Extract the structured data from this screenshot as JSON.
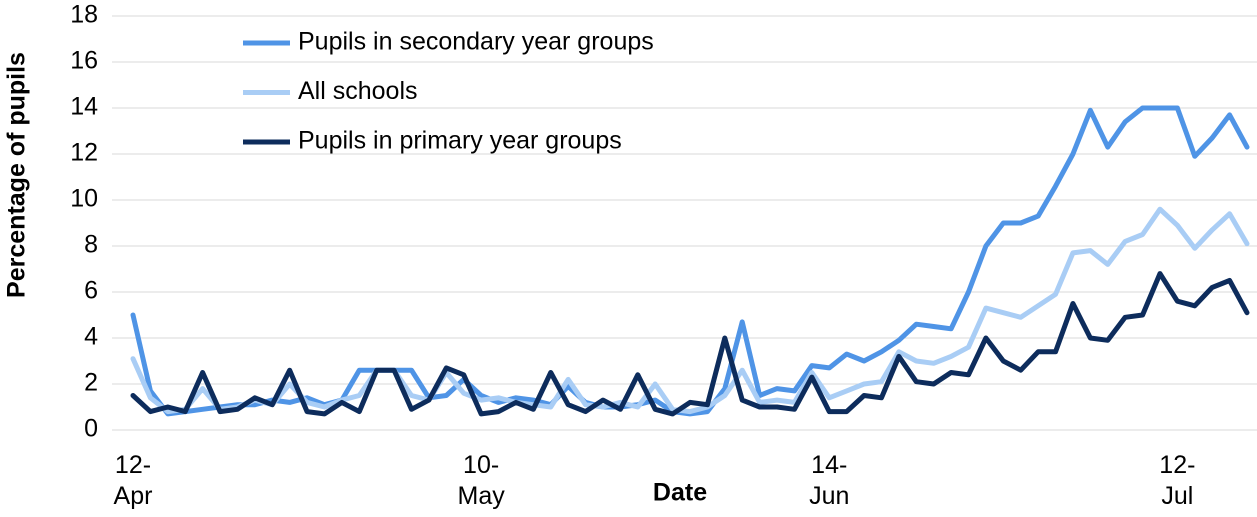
{
  "chart_data": {
    "type": "line",
    "y_label": "Percentage of pupils",
    "x_label": "Date",
    "categories": [
      "12-Apr",
      null,
      null,
      null,
      null,
      null,
      null,
      null,
      null,
      null,
      null,
      null,
      null,
      null,
      null,
      null,
      null,
      null,
      null,
      null,
      "10-May",
      null,
      null,
      null,
      null,
      null,
      null,
      null,
      null,
      null,
      null,
      null,
      null,
      null,
      null,
      null,
      null,
      null,
      null,
      null,
      "14-Jun",
      null,
      null,
      null,
      null,
      null,
      null,
      null,
      null,
      null,
      null,
      null,
      null,
      null,
      null,
      null,
      null,
      null,
      null,
      null,
      "12-Jul",
      null,
      null,
      null,
      null
    ],
    "series": [
      {
        "name": "Pupils in secondary year groups",
        "color": "#4f94e6",
        "values": [
          5.0,
          1.7,
          0.7,
          0.8,
          0.9,
          1.0,
          1.1,
          1.1,
          1.3,
          1.2,
          1.4,
          1.1,
          1.3,
          2.6,
          2.6,
          2.6,
          2.6,
          1.4,
          1.5,
          2.2,
          1.5,
          1.2,
          1.4,
          1.3,
          1.1,
          1.9,
          1.2,
          1.0,
          1.0,
          1.1,
          1.3,
          0.8,
          0.7,
          0.8,
          1.8,
          4.7,
          1.5,
          1.8,
          1.7,
          2.8,
          2.7,
          3.3,
          3.0,
          3.4,
          3.9,
          4.6,
          4.5,
          4.4,
          6.0,
          8.0,
          9.0,
          9.0,
          9.3,
          10.6,
          12.0,
          13.9,
          12.3,
          13.4,
          14.0,
          14.0,
          14.0,
          11.9,
          12.7,
          13.7,
          12.3
        ]
      },
      {
        "name": "All schools",
        "color": "#a9cdf5",
        "values": [
          3.1,
          1.4,
          0.8,
          0.9,
          1.8,
          0.9,
          1.0,
          1.3,
          1.1,
          2.0,
          1.2,
          1.0,
          1.3,
          1.5,
          2.6,
          2.6,
          1.5,
          1.3,
          2.5,
          1.6,
          1.3,
          1.4,
          1.2,
          1.1,
          1.0,
          2.2,
          1.1,
          1.0,
          1.2,
          1.0,
          2.0,
          0.9,
          0.8,
          1.0,
          1.5,
          2.6,
          1.2,
          1.3,
          1.2,
          2.5,
          1.4,
          1.7,
          2.0,
          2.1,
          3.4,
          3.0,
          2.9,
          3.2,
          3.6,
          5.3,
          5.1,
          4.9,
          5.4,
          5.9,
          7.7,
          7.8,
          7.2,
          8.2,
          8.5,
          9.6,
          8.9,
          7.9,
          8.7,
          9.4,
          8.1
        ]
      },
      {
        "name": "Pupils in primary year groups",
        "color": "#0d2c5c",
        "values": [
          1.5,
          0.8,
          1.0,
          0.8,
          2.5,
          0.8,
          0.9,
          1.4,
          1.1,
          2.6,
          0.8,
          0.7,
          1.2,
          0.8,
          2.6,
          2.6,
          0.9,
          1.3,
          2.7,
          2.4,
          0.7,
          0.8,
          1.2,
          0.9,
          2.5,
          1.1,
          0.8,
          1.3,
          0.9,
          2.4,
          0.9,
          0.7,
          1.2,
          1.1,
          4.0,
          1.3,
          1.0,
          1.0,
          0.9,
          2.3,
          0.8,
          0.8,
          1.5,
          1.4,
          3.2,
          2.1,
          2.0,
          2.5,
          2.4,
          4.0,
          3.0,
          2.6,
          3.4,
          3.4,
          5.5,
          4.0,
          3.9,
          4.9,
          5.0,
          6.8,
          5.6,
          5.4,
          6.2,
          6.5,
          5.1
        ]
      }
    ],
    "ylim": [
      0,
      18
    ],
    "yticks": [
      0,
      2,
      4,
      6,
      8,
      10,
      12,
      14,
      16,
      18
    ],
    "grid": true
  }
}
